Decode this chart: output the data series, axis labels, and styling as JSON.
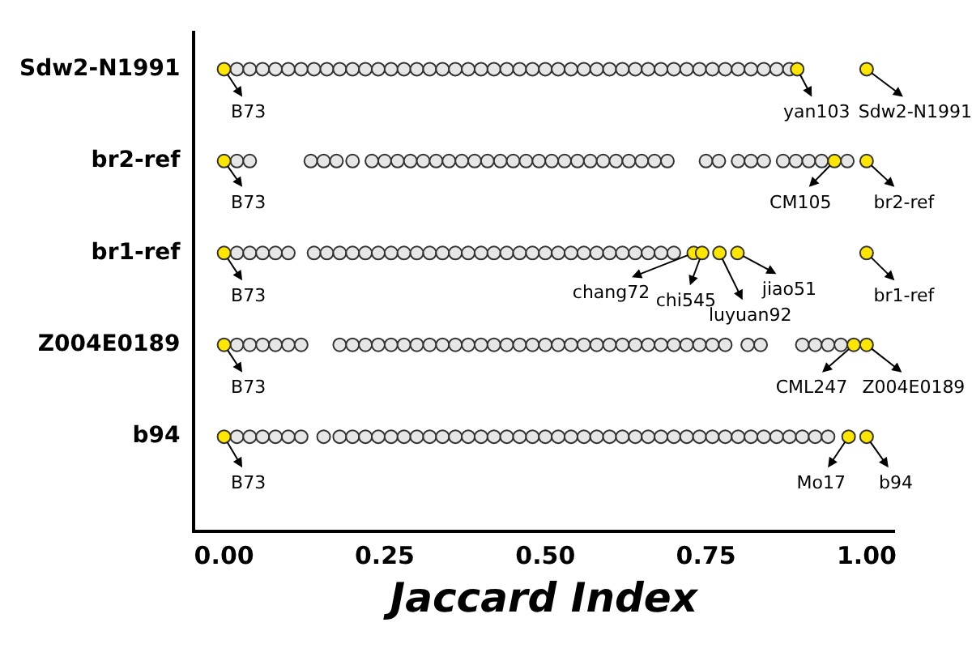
{
  "chart_data": {
    "type": "scatter",
    "orientation": "horizontal",
    "xlabel": "Jaccard Index",
    "categories": [
      "Sdw2-N1991",
      "br2-ref",
      "br1-ref",
      "Z004E0189",
      "b94"
    ],
    "xlim": [
      -0.048,
      1.043
    ],
    "xticks": [
      {
        "value": 0,
        "label": "0.00"
      },
      {
        "value": 0.25,
        "label": "0.25"
      },
      {
        "value": 0.5,
        "label": "0.50"
      },
      {
        "value": 0.75,
        "label": "0.75"
      },
      {
        "value": 1,
        "label": "1.00"
      }
    ],
    "grid": false,
    "legend": false,
    "marker": "circle",
    "series": [
      {
        "values": [
          0.02,
          0.04,
          0.06,
          0.08,
          0.1,
          0.12,
          0.14,
          0.16,
          0.18,
          0.2,
          0.22,
          0.24,
          0.26,
          0.28,
          0.3,
          0.32,
          0.34,
          0.36,
          0.38,
          0.4,
          0.42,
          0.44,
          0.46,
          0.48,
          0.5,
          0.52,
          0.54,
          0.56,
          0.58,
          0.6,
          0.62,
          0.64,
          0.66,
          0.68,
          0.7,
          0.72,
          0.74,
          0.76,
          0.78,
          0.8,
          0.82,
          0.84,
          0.86,
          0.88,
          0,
          0.892,
          1.0
        ],
        "x": [
          "Sdw2-N1991",
          "Sdw2-N1991",
          "Sdw2-N1991",
          "Sdw2-N1991",
          "Sdw2-N1991",
          "Sdw2-N1991",
          "Sdw2-N1991",
          "Sdw2-N1991",
          "Sdw2-N1991",
          "Sdw2-N1991",
          "Sdw2-N1991",
          "Sdw2-N1991",
          "Sdw2-N1991",
          "Sdw2-N1991",
          "Sdw2-N1991",
          "Sdw2-N1991",
          "Sdw2-N1991",
          "Sdw2-N1991",
          "Sdw2-N1991",
          "Sdw2-N1991",
          "Sdw2-N1991",
          "Sdw2-N1991",
          "Sdw2-N1991",
          "Sdw2-N1991",
          "Sdw2-N1991",
          "Sdw2-N1991",
          "Sdw2-N1991",
          "Sdw2-N1991",
          "Sdw2-N1991",
          "Sdw2-N1991",
          "Sdw2-N1991",
          "Sdw2-N1991",
          "Sdw2-N1991",
          "Sdw2-N1991",
          "Sdw2-N1991",
          "Sdw2-N1991",
          "Sdw2-N1991",
          "Sdw2-N1991",
          "Sdw2-N1991",
          "Sdw2-N1991",
          "Sdw2-N1991",
          "Sdw2-N1991",
          "Sdw2-N1991",
          "Sdw2-N1991",
          "Sdw2-N1991",
          "Sdw2-N1991",
          "Sdw2-N1991"
        ],
        "colors": [
          "#e6e6e6",
          "#e6e6e6",
          "#e6e6e6",
          "#e6e6e6",
          "#e6e6e6",
          "#e6e6e6",
          "#e6e6e6",
          "#e6e6e6",
          "#e6e6e6",
          "#e6e6e6",
          "#e6e6e6",
          "#e6e6e6",
          "#e6e6e6",
          "#e6e6e6",
          "#e6e6e6",
          "#e6e6e6",
          "#e6e6e6",
          "#e6e6e6",
          "#e6e6e6",
          "#e6e6e6",
          "#e6e6e6",
          "#e6e6e6",
          "#e6e6e6",
          "#e6e6e6",
          "#e6e6e6",
          "#e6e6e6",
          "#e6e6e6",
          "#e6e6e6",
          "#e6e6e6",
          "#e6e6e6",
          "#e6e6e6",
          "#e6e6e6",
          "#e6e6e6",
          "#e6e6e6",
          "#e6e6e6",
          "#e6e6e6",
          "#e6e6e6",
          "#e6e6e6",
          "#e6e6e6",
          "#e6e6e6",
          "#e6e6e6",
          "#e6e6e6",
          "#e6e6e6",
          "#e6e6e6",
          "#ffe600",
          "#ffe600",
          "#ffe600"
        ]
      },
      {
        "values": [
          0.02,
          0.04,
          0.135,
          0.155,
          0.175,
          0.2,
          0.23,
          0.25,
          0.27,
          0.29,
          0.31,
          0.33,
          0.35,
          0.37,
          0.39,
          0.41,
          0.43,
          0.45,
          0.47,
          0.49,
          0.51,
          0.53,
          0.55,
          0.57,
          0.59,
          0.61,
          0.63,
          0.65,
          0.67,
          0.69,
          0.75,
          0.77,
          0.8,
          0.82,
          0.84,
          0.87,
          0.89,
          0.91,
          0.93,
          0.97,
          0,
          0.95,
          1.0
        ],
        "x": [
          "br2-ref",
          "br2-ref",
          "br2-ref",
          "br2-ref",
          "br2-ref",
          "br2-ref",
          "br2-ref",
          "br2-ref",
          "br2-ref",
          "br2-ref",
          "br2-ref",
          "br2-ref",
          "br2-ref",
          "br2-ref",
          "br2-ref",
          "br2-ref",
          "br2-ref",
          "br2-ref",
          "br2-ref",
          "br2-ref",
          "br2-ref",
          "br2-ref",
          "br2-ref",
          "br2-ref",
          "br2-ref",
          "br2-ref",
          "br2-ref",
          "br2-ref",
          "br2-ref",
          "br2-ref",
          "br2-ref",
          "br2-ref",
          "br2-ref",
          "br2-ref",
          "br2-ref",
          "br2-ref",
          "br2-ref",
          "br2-ref",
          "br2-ref",
          "br2-ref",
          "br2-ref",
          "br2-ref",
          "br2-ref"
        ],
        "colors": [
          "#e6e6e6",
          "#e6e6e6",
          "#e6e6e6",
          "#e6e6e6",
          "#e6e6e6",
          "#e6e6e6",
          "#e6e6e6",
          "#e6e6e6",
          "#e6e6e6",
          "#e6e6e6",
          "#e6e6e6",
          "#e6e6e6",
          "#e6e6e6",
          "#e6e6e6",
          "#e6e6e6",
          "#e6e6e6",
          "#e6e6e6",
          "#e6e6e6",
          "#e6e6e6",
          "#e6e6e6",
          "#e6e6e6",
          "#e6e6e6",
          "#e6e6e6",
          "#e6e6e6",
          "#e6e6e6",
          "#e6e6e6",
          "#e6e6e6",
          "#e6e6e6",
          "#e6e6e6",
          "#e6e6e6",
          "#e6e6e6",
          "#e6e6e6",
          "#e6e6e6",
          "#e6e6e6",
          "#e6e6e6",
          "#e6e6e6",
          "#e6e6e6",
          "#e6e6e6",
          "#e6e6e6",
          "#e6e6e6",
          "#ffe600",
          "#ffe600",
          "#ffe600"
        ]
      },
      {
        "values": [
          0.02,
          0.04,
          0.06,
          0.08,
          0.1,
          0.14,
          0.16,
          0.18,
          0.2,
          0.22,
          0.24,
          0.26,
          0.28,
          0.3,
          0.32,
          0.34,
          0.36,
          0.38,
          0.4,
          0.42,
          0.44,
          0.46,
          0.48,
          0.5,
          0.52,
          0.54,
          0.56,
          0.58,
          0.6,
          0.62,
          0.64,
          0.66,
          0.68,
          0.7,
          0,
          0.731,
          0.744,
          0.771,
          0.799,
          1.0
        ],
        "x": [
          "br1-ref",
          "br1-ref",
          "br1-ref",
          "br1-ref",
          "br1-ref",
          "br1-ref",
          "br1-ref",
          "br1-ref",
          "br1-ref",
          "br1-ref",
          "br1-ref",
          "br1-ref",
          "br1-ref",
          "br1-ref",
          "br1-ref",
          "br1-ref",
          "br1-ref",
          "br1-ref",
          "br1-ref",
          "br1-ref",
          "br1-ref",
          "br1-ref",
          "br1-ref",
          "br1-ref",
          "br1-ref",
          "br1-ref",
          "br1-ref",
          "br1-ref",
          "br1-ref",
          "br1-ref",
          "br1-ref",
          "br1-ref",
          "br1-ref",
          "br1-ref",
          "br1-ref",
          "br1-ref",
          "br1-ref",
          "br1-ref",
          "br1-ref",
          "br1-ref"
        ],
        "colors": [
          "#e6e6e6",
          "#e6e6e6",
          "#e6e6e6",
          "#e6e6e6",
          "#e6e6e6",
          "#e6e6e6",
          "#e6e6e6",
          "#e6e6e6",
          "#e6e6e6",
          "#e6e6e6",
          "#e6e6e6",
          "#e6e6e6",
          "#e6e6e6",
          "#e6e6e6",
          "#e6e6e6",
          "#e6e6e6",
          "#e6e6e6",
          "#e6e6e6",
          "#e6e6e6",
          "#e6e6e6",
          "#e6e6e6",
          "#e6e6e6",
          "#e6e6e6",
          "#e6e6e6",
          "#e6e6e6",
          "#e6e6e6",
          "#e6e6e6",
          "#e6e6e6",
          "#e6e6e6",
          "#e6e6e6",
          "#e6e6e6",
          "#e6e6e6",
          "#e6e6e6",
          "#e6e6e6",
          "#ffe600",
          "#ffe600",
          "#ffe600",
          "#ffe600",
          "#ffe600",
          "#ffe600"
        ]
      },
      {
        "values": [
          0.02,
          0.04,
          0.06,
          0.08,
          0.1,
          0.12,
          0.18,
          0.2,
          0.22,
          0.24,
          0.26,
          0.28,
          0.3,
          0.32,
          0.34,
          0.36,
          0.38,
          0.4,
          0.42,
          0.44,
          0.46,
          0.48,
          0.5,
          0.52,
          0.54,
          0.56,
          0.58,
          0.6,
          0.62,
          0.64,
          0.66,
          0.68,
          0.7,
          0.72,
          0.74,
          0.76,
          0.78,
          0.815,
          0.835,
          0.9,
          0.92,
          0.94,
          0.96,
          0,
          0.98,
          1.0
        ],
        "x": [
          "Z004E0189",
          "Z004E0189",
          "Z004E0189",
          "Z004E0189",
          "Z004E0189",
          "Z004E0189",
          "Z004E0189",
          "Z004E0189",
          "Z004E0189",
          "Z004E0189",
          "Z004E0189",
          "Z004E0189",
          "Z004E0189",
          "Z004E0189",
          "Z004E0189",
          "Z004E0189",
          "Z004E0189",
          "Z004E0189",
          "Z004E0189",
          "Z004E0189",
          "Z004E0189",
          "Z004E0189",
          "Z004E0189",
          "Z004E0189",
          "Z004E0189",
          "Z004E0189",
          "Z004E0189",
          "Z004E0189",
          "Z004E0189",
          "Z004E0189",
          "Z004E0189",
          "Z004E0189",
          "Z004E0189",
          "Z004E0189",
          "Z004E0189",
          "Z004E0189",
          "Z004E0189",
          "Z004E0189",
          "Z004E0189",
          "Z004E0189",
          "Z004E0189",
          "Z004E0189",
          "Z004E0189",
          "Z004E0189",
          "Z004E0189",
          "Z004E0189"
        ],
        "colors": [
          "#e6e6e6",
          "#e6e6e6",
          "#e6e6e6",
          "#e6e6e6",
          "#e6e6e6",
          "#e6e6e6",
          "#e6e6e6",
          "#e6e6e6",
          "#e6e6e6",
          "#e6e6e6",
          "#e6e6e6",
          "#e6e6e6",
          "#e6e6e6",
          "#e6e6e6",
          "#e6e6e6",
          "#e6e6e6",
          "#e6e6e6",
          "#e6e6e6",
          "#e6e6e6",
          "#e6e6e6",
          "#e6e6e6",
          "#e6e6e6",
          "#e6e6e6",
          "#e6e6e6",
          "#e6e6e6",
          "#e6e6e6",
          "#e6e6e6",
          "#e6e6e6",
          "#e6e6e6",
          "#e6e6e6",
          "#e6e6e6",
          "#e6e6e6",
          "#e6e6e6",
          "#e6e6e6",
          "#e6e6e6",
          "#e6e6e6",
          "#e6e6e6",
          "#e6e6e6",
          "#e6e6e6",
          "#e6e6e6",
          "#e6e6e6",
          "#e6e6e6",
          "#e6e6e6",
          "#ffe600",
          "#ffe600",
          "#ffe600"
        ]
      },
      {
        "values": [
          0.02,
          0.04,
          0.06,
          0.08,
          0.1,
          0.12,
          0.155,
          0.18,
          0.2,
          0.22,
          0.24,
          0.26,
          0.28,
          0.3,
          0.32,
          0.34,
          0.36,
          0.38,
          0.4,
          0.42,
          0.44,
          0.46,
          0.48,
          0.5,
          0.52,
          0.54,
          0.56,
          0.58,
          0.6,
          0.62,
          0.64,
          0.66,
          0.68,
          0.7,
          0.72,
          0.74,
          0.76,
          0.78,
          0.8,
          0.82,
          0.84,
          0.86,
          0.88,
          0.9,
          0.92,
          0.94,
          0,
          0.972,
          1.0
        ],
        "x": [
          "b94",
          "b94",
          "b94",
          "b94",
          "b94",
          "b94",
          "b94",
          "b94",
          "b94",
          "b94",
          "b94",
          "b94",
          "b94",
          "b94",
          "b94",
          "b94",
          "b94",
          "b94",
          "b94",
          "b94",
          "b94",
          "b94",
          "b94",
          "b94",
          "b94",
          "b94",
          "b94",
          "b94",
          "b94",
          "b94",
          "b94",
          "b94",
          "b94",
          "b94",
          "b94",
          "b94",
          "b94",
          "b94",
          "b94",
          "b94",
          "b94",
          "b94",
          "b94",
          "b94",
          "b94",
          "b94",
          "b94",
          "b94",
          "b94"
        ],
        "colors": [
          "#e6e6e6",
          "#e6e6e6",
          "#e6e6e6",
          "#e6e6e6",
          "#e6e6e6",
          "#e6e6e6",
          "#e6e6e6",
          "#e6e6e6",
          "#e6e6e6",
          "#e6e6e6",
          "#e6e6e6",
          "#e6e6e6",
          "#e6e6e6",
          "#e6e6e6",
          "#e6e6e6",
          "#e6e6e6",
          "#e6e6e6",
          "#e6e6e6",
          "#e6e6e6",
          "#e6e6e6",
          "#e6e6e6",
          "#e6e6e6",
          "#e6e6e6",
          "#e6e6e6",
          "#e6e6e6",
          "#e6e6e6",
          "#e6e6e6",
          "#e6e6e6",
          "#e6e6e6",
          "#e6e6e6",
          "#e6e6e6",
          "#e6e6e6",
          "#e6e6e6",
          "#e6e6e6",
          "#e6e6e6",
          "#e6e6e6",
          "#e6e6e6",
          "#e6e6e6",
          "#e6e6e6",
          "#e6e6e6",
          "#e6e6e6",
          "#e6e6e6",
          "#e6e6e6",
          "#e6e6e6",
          "#e6e6e6",
          "#e6e6e6",
          "#ffe600",
          "#ffe600",
          "#ffe600"
        ]
      }
    ],
    "annotations": [
      {
        "text": "B73",
        "x": 0,
        "y": "Sdw2-N1991"
      },
      {
        "text": "yan103",
        "x": 0.892,
        "y": "Sdw2-N1991"
      },
      {
        "text": "Sdw2-N1991",
        "x": 1.0,
        "y": "Sdw2-N1991"
      },
      {
        "text": "B73",
        "x": 0,
        "y": "br2-ref"
      },
      {
        "text": "CM105",
        "x": 0.95,
        "y": "br2-ref"
      },
      {
        "text": "br2-ref",
        "x": 1.0,
        "y": "br2-ref"
      },
      {
        "text": "B73",
        "x": 0,
        "y": "br1-ref"
      },
      {
        "text": "chang72",
        "x": 0.731,
        "y": "br1-ref"
      },
      {
        "text": "chi545",
        "x": 0.744,
        "y": "br1-ref"
      },
      {
        "text": "luyuan92",
        "x": 0.771,
        "y": "br1-ref"
      },
      {
        "text": "jiao51",
        "x": 0.799,
        "y": "br1-ref"
      },
      {
        "text": "br1-ref",
        "x": 1.0,
        "y": "br1-ref"
      },
      {
        "text": "B73",
        "x": 0,
        "y": "Z004E0189"
      },
      {
        "text": "CML247",
        "x": 0.98,
        "y": "Z004E0189"
      },
      {
        "text": "Z004E0189",
        "x": 1.0,
        "y": "Z004E0189"
      },
      {
        "text": "B73",
        "x": 0,
        "y": "b94"
      },
      {
        "text": "Mo17",
        "x": 0.972,
        "y": "b94"
      },
      {
        "text": "b94",
        "x": 1.0,
        "y": "b94"
      }
    ]
  }
}
